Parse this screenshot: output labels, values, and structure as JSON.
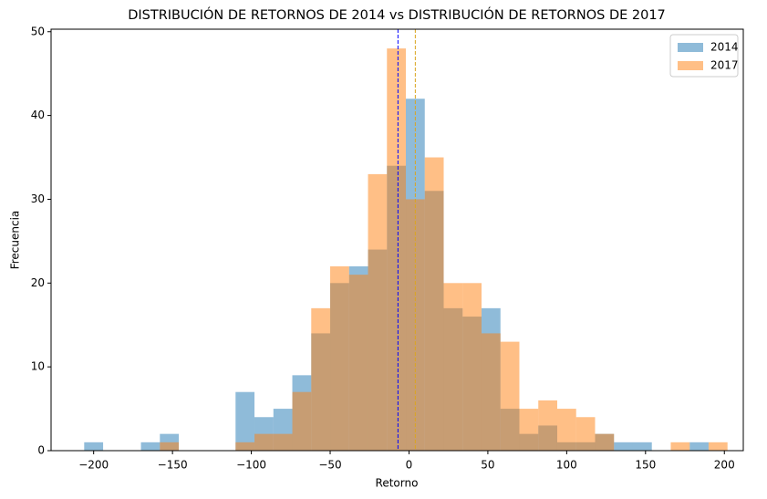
{
  "chart_data": {
    "type": "histogram",
    "title": "DISTRIBUCIÓN DE RETORNOS DE 2014 vs DISTRIBUCIÓN DE RETORNOS DE 2017",
    "xlabel": "Retorno",
    "ylabel": "Frecuencia",
    "bins": [
      -206,
      -194,
      -182,
      -170,
      -158,
      -146,
      -134,
      -122,
      -110,
      -98,
      -86,
      -74,
      -62,
      -50,
      -38,
      -26,
      -14,
      -2,
      10,
      22,
      34,
      46,
      58,
      70,
      82,
      94,
      106,
      118,
      130,
      142,
      154,
      166,
      178,
      190,
      202
    ],
    "series": [
      {
        "name": "2014",
        "color": "#1f77b4",
        "mean_color": "#0000ff",
        "mean": -7,
        "values": [
          1,
          0,
          0,
          1,
          2,
          0,
          0,
          0,
          7,
          4,
          5,
          9,
          14,
          20,
          22,
          24,
          34,
          42,
          31,
          17,
          16,
          17,
          5,
          2,
          3,
          1,
          1,
          2,
          1,
          1,
          0,
          0,
          1,
          0
        ]
      },
      {
        "name": "2017",
        "color": "#ff7f0e",
        "mean_color": "#daa520",
        "mean": 4,
        "values": [
          0,
          0,
          0,
          0,
          1,
          0,
          0,
          0,
          1,
          2,
          2,
          7,
          17,
          22,
          21,
          33,
          48,
          30,
          35,
          20,
          20,
          14,
          13,
          5,
          6,
          5,
          4,
          2,
          0,
          0,
          0,
          1,
          0,
          1
        ]
      }
    ],
    "opacity": 0.5,
    "xlim": [
      -227,
      212
    ],
    "ylim": [
      0,
      50.3
    ],
    "xticks": [
      {
        "value": -200,
        "label": "−200"
      },
      {
        "value": -150,
        "label": "−150"
      },
      {
        "value": -100,
        "label": "−100"
      },
      {
        "value": -50,
        "label": "−50"
      },
      0,
      50,
      100,
      150,
      200
    ],
    "yticks": [
      0,
      10,
      20,
      30,
      40,
      50
    ],
    "legend": "upper-right"
  }
}
